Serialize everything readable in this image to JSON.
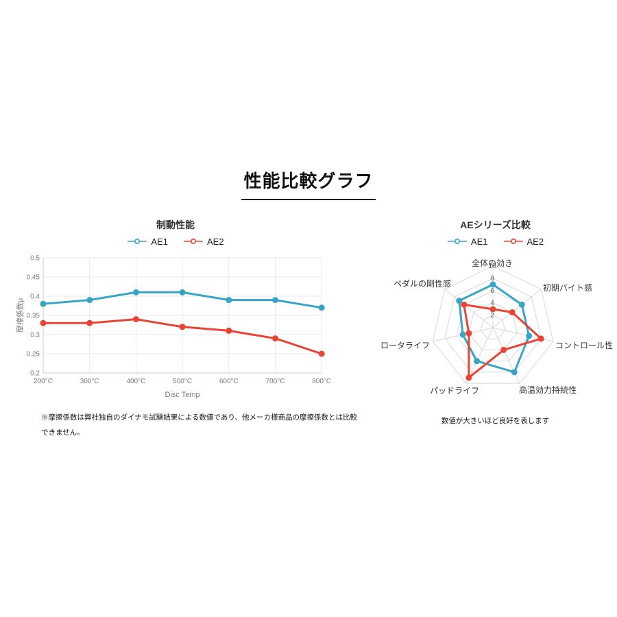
{
  "page": {
    "title": "性能比較グラフ"
  },
  "colors": {
    "ae1": "#38A5C6",
    "ae2": "#E94333",
    "grid": "#EAEAEA",
    "axis": "#CCCCCC",
    "radar_grid": "#D8D8D8",
    "tick_text": "#777777",
    "radar_tick_text": "#555555",
    "label_text": "#333333"
  },
  "chart_data": [
    {
      "type": "line",
      "title": "制動性能",
      "x": [
        "200°C",
        "300°C",
        "400°C",
        "500°C",
        "600°C",
        "700°C",
        "800°C"
      ],
      "series": [
        {
          "name": "AE1",
          "color_key": "ae1",
          "values": [
            0.38,
            0.39,
            0.41,
            0.41,
            0.39,
            0.39,
            0.37
          ]
        },
        {
          "name": "AE2",
          "color_key": "ae2",
          "values": [
            0.33,
            0.33,
            0.34,
            0.32,
            0.31,
            0.29,
            0.25
          ]
        }
      ],
      "xlabel": "Disc Temp",
      "ylabel": "摩擦係数μ",
      "ylim": [
        0.2,
        0.5
      ],
      "yticks": [
        "0.5",
        "0.45",
        "0.4",
        "0.35",
        "0.3",
        "0.25",
        "0.2"
      ],
      "grid": true,
      "legend_position": "top",
      "footnote_lines": [
        "※摩擦係数は弊社独自のダイナモ試験結果による数値であり、他メーカ様商品の摩擦係数とは比較",
        "できません。"
      ]
    },
    {
      "type": "radar",
      "title": "AEシリーズ比較",
      "axes": [
        "全体の効き",
        "初期バイト感",
        "コントロール性",
        "高温効力持続性",
        "パッドライフ",
        "ロータライフ",
        "ペダルの剛性感"
      ],
      "series": [
        {
          "name": "AE1",
          "color_key": "ae1",
          "values": [
            7,
            6,
            6,
            8,
            6,
            5,
            7
          ]
        },
        {
          "name": "AE2",
          "color_key": "ae2",
          "values": [
            3,
            4,
            8,
            4,
            9,
            4,
            6
          ]
        }
      ],
      "scale": {
        "min": 0,
        "max": 10,
        "step": 2,
        "tick_labels": [
          "2",
          "4",
          "6",
          "8",
          "10"
        ]
      },
      "legend_position": "top",
      "caption": "数値が大きいほど良好を表します"
    }
  ]
}
